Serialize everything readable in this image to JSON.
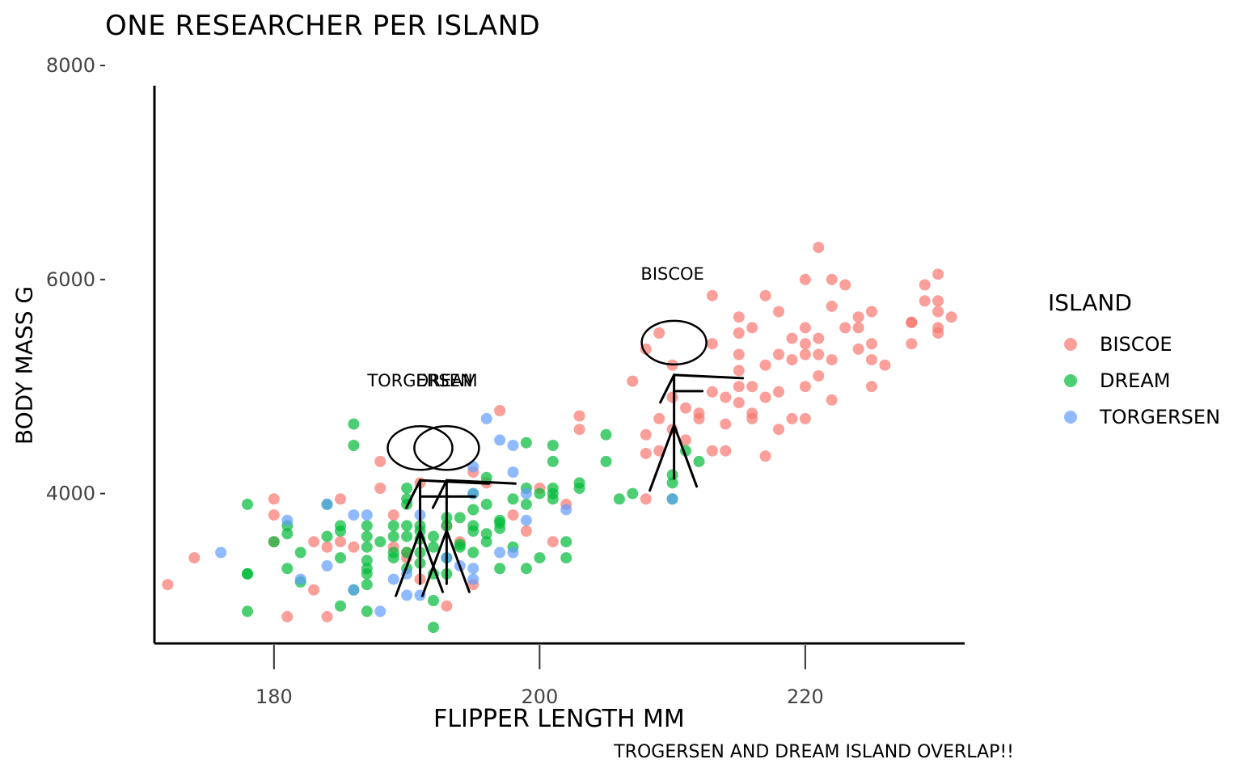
{
  "chart_data": {
    "type": "scatter",
    "title": "One researcher per island",
    "xlabel": "Flipper length mm",
    "ylabel": "Body mass g",
    "caption": "Trogersen and Dream island overlap!!",
    "xlim": [
      171,
      232
    ],
    "ylim": [
      2600,
      8000
    ],
    "xticks": [
      180,
      200,
      220
    ],
    "yticks": [
      4000,
      6000,
      8000
    ],
    "grid": false,
    "legend": {
      "title": "island",
      "placement": "right"
    },
    "series": [
      {
        "name": "Biscoe",
        "color": "#F8766D",
        "points": [
          [
            172,
            3150
          ],
          [
            174,
            3400
          ],
          [
            180,
            3950
          ],
          [
            180,
            3800
          ],
          [
            180,
            3550
          ],
          [
            181,
            2850
          ],
          [
            183,
            3550
          ],
          [
            183,
            3100
          ],
          [
            184,
            3500
          ],
          [
            184,
            2850
          ],
          [
            185,
            3950
          ],
          [
            185,
            3550
          ],
          [
            186,
            3500
          ],
          [
            188,
            4300
          ],
          [
            188,
            4050
          ],
          [
            189,
            3500
          ],
          [
            189,
            3800
          ],
          [
            190,
            3450
          ],
          [
            190,
            3400
          ],
          [
            191,
            4100
          ],
          [
            191,
            3200
          ],
          [
            193,
            3700
          ],
          [
            193,
            2950
          ],
          [
            194,
            3550
          ],
          [
            195,
            3150
          ],
          [
            195,
            4200
          ],
          [
            196,
            4100
          ],
          [
            197,
            4775
          ],
          [
            198,
            3800
          ],
          [
            199,
            3650
          ],
          [
            200,
            4050
          ],
          [
            201,
            3550
          ],
          [
            202,
            3900
          ],
          [
            203,
            4725
          ],
          [
            203,
            4600
          ],
          [
            207,
            5050
          ],
          [
            208,
            4550
          ],
          [
            208,
            4375
          ],
          [
            208,
            5350
          ],
          [
            208,
            3950
          ],
          [
            209,
            4700
          ],
          [
            209,
            5500
          ],
          [
            209,
            4400
          ],
          [
            210,
            4900
          ],
          [
            210,
            4600
          ],
          [
            210,
            5200
          ],
          [
            211,
            4800
          ],
          [
            211,
            4500
          ],
          [
            212,
            4700
          ],
          [
            212,
            4750
          ],
          [
            213,
            4400
          ],
          [
            213,
            5400
          ],
          [
            213,
            4950
          ],
          [
            213,
            5850
          ],
          [
            214,
            4400
          ],
          [
            214,
            4650
          ],
          [
            214,
            4900
          ],
          [
            215,
            5000
          ],
          [
            215,
            5150
          ],
          [
            215,
            5300
          ],
          [
            215,
            5500
          ],
          [
            215,
            5650
          ],
          [
            215,
            4850
          ],
          [
            216,
            5000
          ],
          [
            216,
            4750
          ],
          [
            216,
            5550
          ],
          [
            216,
            4700
          ],
          [
            217,
            4350
          ],
          [
            217,
            4900
          ],
          [
            217,
            5200
          ],
          [
            217,
            5850
          ],
          [
            218,
            4950
          ],
          [
            218,
            5300
          ],
          [
            218,
            5700
          ],
          [
            218,
            4600
          ],
          [
            219,
            5250
          ],
          [
            219,
            4700
          ],
          [
            219,
            5450
          ],
          [
            220,
            5300
          ],
          [
            220,
            5000
          ],
          [
            220,
            4700
          ],
          [
            220,
            6000
          ],
          [
            220,
            5400
          ],
          [
            220,
            5550
          ],
          [
            221,
            5100
          ],
          [
            221,
            5300
          ],
          [
            221,
            5450
          ],
          [
            221,
            6300
          ],
          [
            222,
            4875
          ],
          [
            222,
            5250
          ],
          [
            222,
            5750
          ],
          [
            222,
            6000
          ],
          [
            223,
            5550
          ],
          [
            223,
            5950
          ],
          [
            224,
            5650
          ],
          [
            224,
            5350
          ],
          [
            224,
            5550
          ],
          [
            225,
            5700
          ],
          [
            225,
            5400
          ],
          [
            225,
            5250
          ],
          [
            225,
            5000
          ],
          [
            226,
            5200
          ],
          [
            228,
            5600
          ],
          [
            228,
            5600
          ],
          [
            228,
            5400
          ],
          [
            229,
            5950
          ],
          [
            229,
            5800
          ],
          [
            230,
            5800
          ],
          [
            230,
            5700
          ],
          [
            230,
            5550
          ],
          [
            230,
            6050
          ],
          [
            230,
            5500
          ],
          [
            231,
            5650
          ]
        ]
      },
      {
        "name": "Dream",
        "color": "#00BA38",
        "points": [
          [
            178,
            3900
          ],
          [
            178,
            3250
          ],
          [
            178,
            3250
          ],
          [
            178,
            2900
          ],
          [
            180,
            3550
          ],
          [
            181,
            3625
          ],
          [
            181,
            3300
          ],
          [
            181,
            3700
          ],
          [
            182,
            3175
          ],
          [
            182,
            3450
          ],
          [
            184,
            3900
          ],
          [
            184,
            3600
          ],
          [
            185,
            3650
          ],
          [
            185,
            3700
          ],
          [
            185,
            2950
          ],
          [
            185,
            3400
          ],
          [
            186,
            4650
          ],
          [
            186,
            4450
          ],
          [
            186,
            3100
          ],
          [
            187,
            3600
          ],
          [
            187,
            3500
          ],
          [
            187,
            3250
          ],
          [
            187,
            2900
          ],
          [
            187,
            3300
          ],
          [
            187,
            3700
          ],
          [
            187,
            3375
          ],
          [
            187,
            3150
          ],
          [
            188,
            3550
          ],
          [
            189,
            3400
          ],
          [
            189,
            3600
          ],
          [
            189,
            3700
          ],
          [
            189,
            3450
          ],
          [
            190,
            3300
          ],
          [
            190,
            3700
          ],
          [
            190,
            3600
          ],
          [
            190,
            3450
          ],
          [
            190,
            3950
          ],
          [
            190,
            4050
          ],
          [
            190,
            3900
          ],
          [
            191,
            3450
          ],
          [
            191,
            3350
          ],
          [
            191,
            3650
          ],
          [
            191,
            3700
          ],
          [
            191,
            3575
          ],
          [
            192,
            3250
          ],
          [
            192,
            3500
          ],
          [
            192,
            3600
          ],
          [
            192,
            2750
          ],
          [
            192,
            3000
          ],
          [
            193,
            3250
          ],
          [
            193,
            3400
          ],
          [
            193,
            3775
          ],
          [
            193,
            3700
          ],
          [
            194,
            3775
          ],
          [
            194,
            3525
          ],
          [
            194,
            3500
          ],
          [
            195,
            3850
          ],
          [
            195,
            3450
          ],
          [
            195,
            3650
          ],
          [
            195,
            4000
          ],
          [
            195,
            3700
          ],
          [
            196,
            3550
          ],
          [
            196,
            3625
          ],
          [
            196,
            3900
          ],
          [
            196,
            4150
          ],
          [
            197,
            3675
          ],
          [
            197,
            3300
          ],
          [
            197,
            3750
          ],
          [
            197,
            3725
          ],
          [
            198,
            3950
          ],
          [
            198,
            3500
          ],
          [
            199,
            4050
          ],
          [
            199,
            3900
          ],
          [
            199,
            3300
          ],
          [
            199,
            4475
          ],
          [
            200,
            3400
          ],
          [
            200,
            4000
          ],
          [
            201,
            3950
          ],
          [
            201,
            4300
          ],
          [
            201,
            4000
          ],
          [
            201,
            4450
          ],
          [
            201,
            4050
          ],
          [
            202,
            3400
          ],
          [
            202,
            3550
          ],
          [
            203,
            4050
          ],
          [
            203,
            4100
          ],
          [
            205,
            4550
          ],
          [
            205,
            4300
          ],
          [
            206,
            3950
          ],
          [
            207,
            4000
          ],
          [
            210,
            4100
          ],
          [
            210,
            4175
          ],
          [
            210,
            3950
          ],
          [
            211,
            4400
          ],
          [
            212,
            4300
          ]
        ]
      },
      {
        "name": "Torgersen",
        "color": "#619CFF",
        "points": [
          [
            176,
            3450
          ],
          [
            181,
            3750
          ],
          [
            182,
            3200
          ],
          [
            184,
            3325
          ],
          [
            184,
            3900
          ],
          [
            186,
            3800
          ],
          [
            186,
            3100
          ],
          [
            187,
            3800
          ],
          [
            188,
            2900
          ],
          [
            189,
            3200
          ],
          [
            190,
            3050
          ],
          [
            190,
            3250
          ],
          [
            191,
            3050
          ],
          [
            191,
            3800
          ],
          [
            193,
            3400
          ],
          [
            194,
            3325
          ],
          [
            195,
            4250
          ],
          [
            195,
            3300
          ],
          [
            195,
            4000
          ],
          [
            195,
            3200
          ],
          [
            196,
            4700
          ],
          [
            197,
            4500
          ],
          [
            197,
            3450
          ],
          [
            198,
            4200
          ],
          [
            198,
            3450
          ],
          [
            198,
            4450
          ],
          [
            199,
            3750
          ],
          [
            199,
            4000
          ],
          [
            202,
            3850
          ],
          [
            210,
            3950
          ]
        ]
      }
    ],
    "annotations": [
      {
        "label": "Biscoe",
        "x": 210,
        "y": 6000
      },
      {
        "label": "Torgersen",
        "x": 191,
        "y": 5000
      },
      {
        "label": "Dream",
        "x": 193,
        "y": 5000
      }
    ]
  }
}
